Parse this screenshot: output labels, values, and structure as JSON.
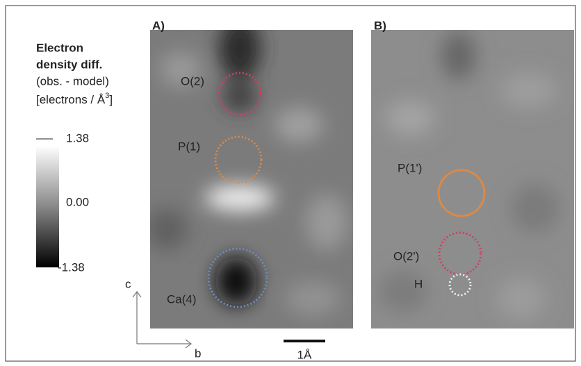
{
  "legend": {
    "title_line1": "Electron",
    "title_line2": "density diff.",
    "subtitle": "(obs. - model)",
    "unit_prefix": "[electrons / Å",
    "unit_superscript": "3",
    "unit_suffix": "]",
    "ticks": [
      "1.38",
      "0.00",
      "-1.38"
    ]
  },
  "panels": [
    {
      "label": "A)",
      "atoms": [
        "O(2)",
        "P(1)",
        "Ca(4)"
      ]
    },
    {
      "label": "B)",
      "atoms": [
        "P(1')",
        "O(2')",
        "H"
      ]
    }
  ],
  "axes": {
    "vertical": "c",
    "horizontal": "b"
  },
  "scale_bar": "1Å"
}
